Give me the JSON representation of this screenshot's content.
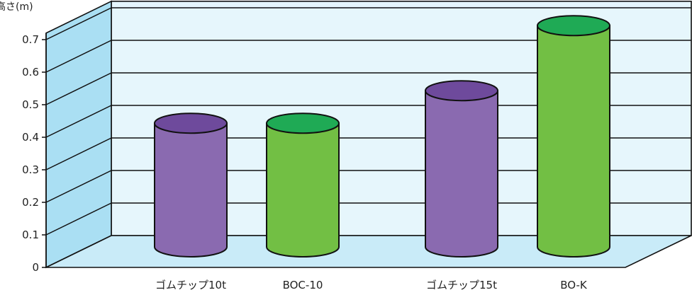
{
  "chart_data": {
    "type": "bar",
    "style": "3d-cylinder",
    "ylabel": "高さ(m)",
    "ylim": [
      0,
      0.7
    ],
    "yticks": [
      "0",
      "0.1",
      "0.2",
      "0.3",
      "0.4",
      "0.5",
      "0.6",
      "0.7"
    ],
    "grid": true,
    "categories": [
      "ゴムチップ10t",
      "BOC-10",
      "ゴムチップ15t",
      "BO-K"
    ],
    "values": [
      0.38,
      0.38,
      0.48,
      0.68
    ],
    "bar_colors": [
      "#8a6ab0",
      "#72bf44",
      "#8a6ab0",
      "#72bf44"
    ],
    "bar_top_colors": [
      "#6e4a9c",
      "#1faa55",
      "#6e4a9c",
      "#1faa55"
    ],
    "background_colors": {
      "back_wall": "#e6f6fc",
      "side_wall": "#aadff3",
      "floor": "#c9ebf8"
    }
  }
}
